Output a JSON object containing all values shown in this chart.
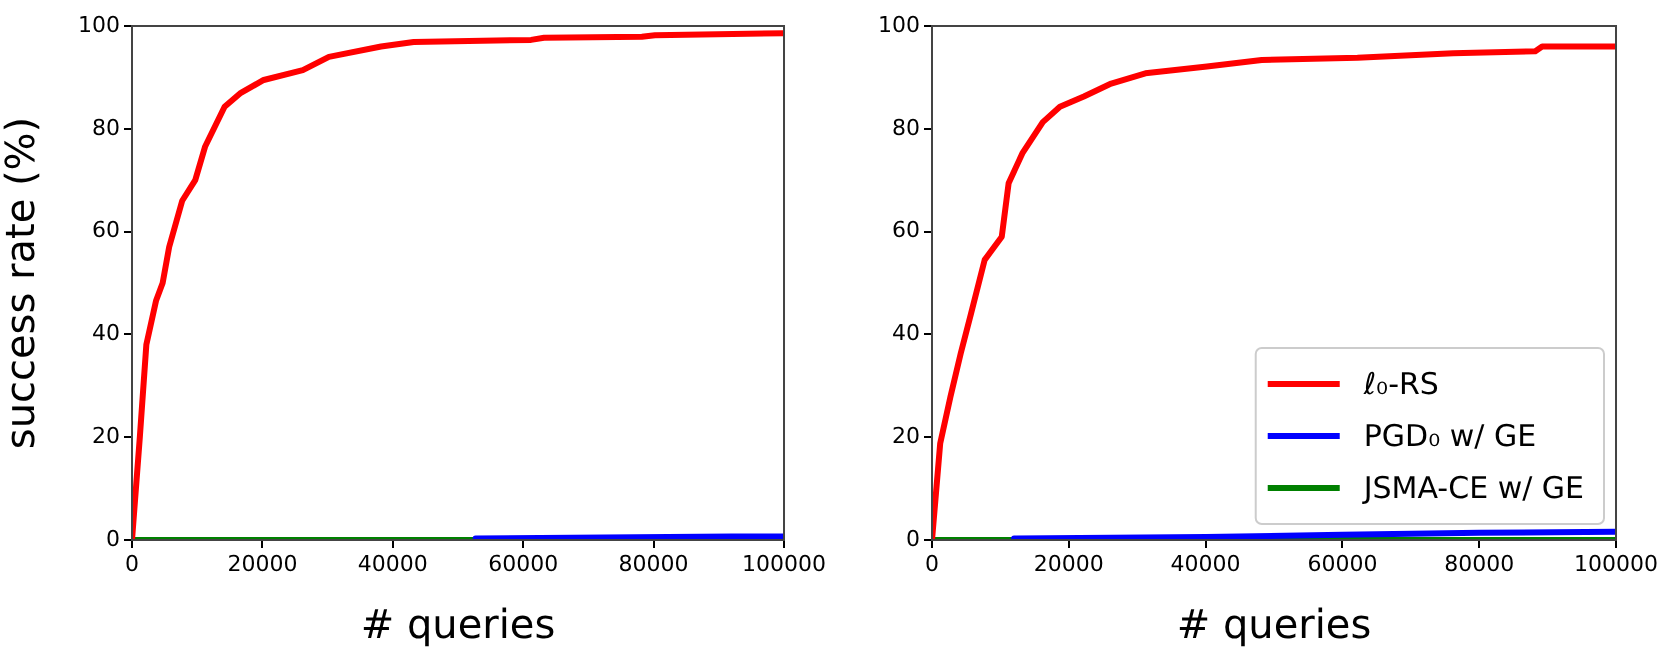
{
  "chart_data": [
    {
      "type": "line",
      "xlabel": "# queries",
      "ylabel": "success rate (%)",
      "xlim": [
        0,
        100000
      ],
      "ylim": [
        0,
        100
      ],
      "xticks": [
        0,
        20000,
        40000,
        60000,
        80000,
        100000
      ],
      "yticks": [
        0,
        20,
        40,
        60,
        80,
        100
      ],
      "grid": false,
      "legend": false,
      "series": [
        {
          "color": "#ff0000",
          "x": [
            0,
            1200,
            2200,
            3700,
            4700,
            5700,
            7700,
            9700,
            11200,
            14200,
            16700,
            20200,
            26200,
            30200,
            38200,
            43200,
            61200,
            63200,
            78200,
            80200,
            100000
          ],
          "values": [
            0,
            20,
            38,
            46.6,
            50,
            57,
            66,
            70,
            76.5,
            84.3,
            87,
            89.5,
            91.4,
            94,
            96,
            96.9,
            97.3,
            97.7,
            97.9,
            98.2,
            98.6
          ]
        },
        {
          "color": "#0000ff",
          "x": [
            52700,
            92000,
            100000
          ],
          "values": [
            0.3,
            0.7,
            0.7
          ]
        },
        {
          "color": "#008000",
          "x": [
            0,
            100000
          ],
          "values": [
            0,
            0
          ]
        }
      ]
    },
    {
      "type": "line",
      "xlabel": "# queries",
      "xlim": [
        0,
        100000
      ],
      "ylim": [
        0,
        100
      ],
      "xticks": [
        0,
        20000,
        40000,
        60000,
        80000,
        100000
      ],
      "yticks": [
        0,
        20,
        40,
        60,
        80,
        100
      ],
      "grid": false,
      "legend": "bottom right",
      "series": [
        {
          "name": "ℓ₀-RS",
          "color": "#ff0000",
          "x": [
            0,
            1200,
            2700,
            4200,
            5700,
            7700,
            10200,
            11200,
            13200,
            16200,
            18700,
            22200,
            26200,
            31200,
            40200,
            48200,
            62200,
            76200,
            88200,
            89200,
            100000
          ],
          "values": [
            0,
            18.8,
            27.9,
            36.3,
            44,
            54.5,
            59,
            69.4,
            75.2,
            81.3,
            84.3,
            86.3,
            88.8,
            90.8,
            92.1,
            93.4,
            93.8,
            94.7,
            95.1,
            96,
            96
          ]
        },
        {
          "name": "PGD₀ w/ GE",
          "color": "#0000ff",
          "x": [
            12000,
            40000,
            60000,
            80000,
            100000
          ],
          "values": [
            0.3,
            0.6,
            1.0,
            1.4,
            1.6
          ]
        },
        {
          "name": "JSMA-CE w/ GE",
          "color": "#008000",
          "x": [
            0,
            100000
          ],
          "values": [
            0,
            0
          ]
        }
      ]
    }
  ]
}
